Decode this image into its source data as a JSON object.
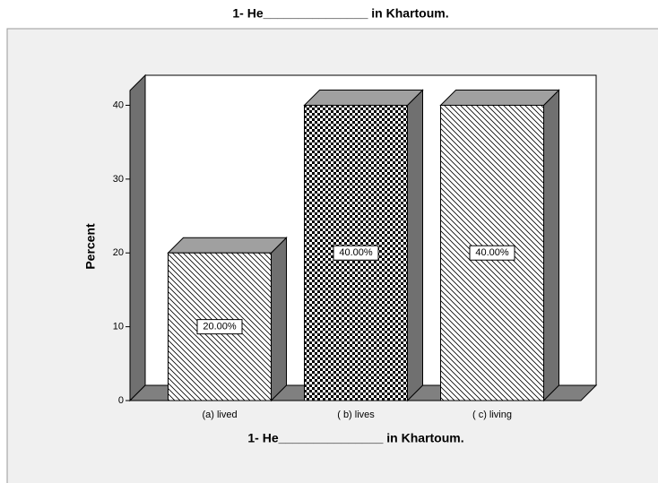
{
  "chart_data": {
    "type": "bar3d",
    "title": "1- He_______________ in Khartoum.",
    "x_label": "1- He_______________ in Khartoum.",
    "y_label": "Percent",
    "categories": [
      "(a) lived",
      "( b) lives",
      "( c)  living"
    ],
    "values": [
      20,
      40,
      40
    ],
    "value_labels": [
      "20.00%",
      "40.00%",
      "40.00%"
    ],
    "patterns": [
      "hatch",
      "checker",
      "hatch"
    ],
    "ylim": [
      0,
      42
    ],
    "yticks": [
      0,
      10,
      20,
      30,
      40
    ],
    "grid": false
  }
}
